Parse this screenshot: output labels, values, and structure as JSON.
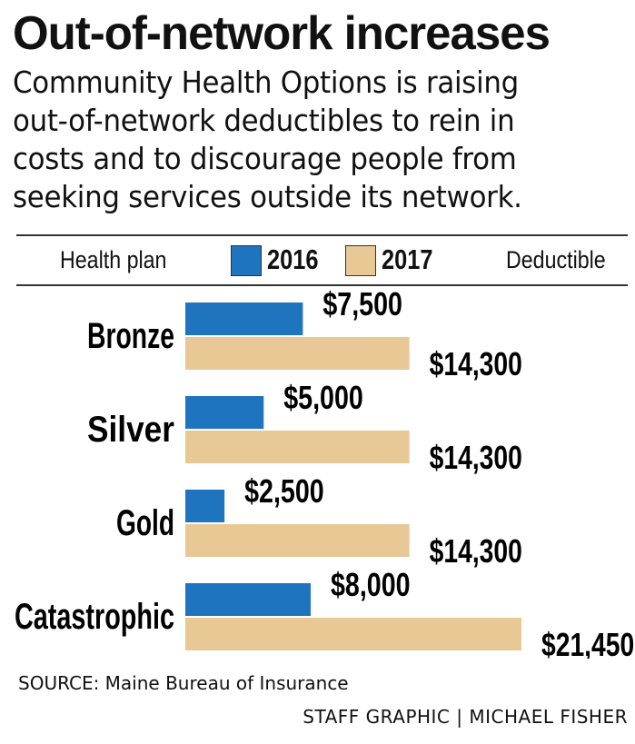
{
  "title": "Out-of-network increases",
  "subtitle_lines": [
    "Community Health Options is raising",
    "out-of-network deductibles to rein in",
    "costs and to discourage people from",
    "seeking services outside its network."
  ],
  "header": {
    "plan_label": "Health plan",
    "deductible_label": "Deductible"
  },
  "colors": {
    "2016": "#1f74c0",
    "2017": "#e8c995"
  },
  "chart_data": {
    "type": "bar",
    "orientation": "horizontal",
    "categories": [
      "Bronze",
      "Silver",
      "Gold",
      "Catastrophic"
    ],
    "series": [
      {
        "name": "2016",
        "values": [
          7500,
          5000,
          2500,
          8000
        ],
        "labels": [
          "$7,500",
          "$5,000",
          "$2,500",
          "$8,000"
        ]
      },
      {
        "name": "2017",
        "values": [
          14300,
          14300,
          14300,
          21450
        ],
        "labels": [
          "$14,300",
          "$14,300",
          "$14,300",
          "$21,450"
        ]
      }
    ],
    "legend_position": "top",
    "grid": false
  },
  "source": "SOURCE: Maine Bureau of Insurance",
  "credit": "STAFF GRAPHIC | MICHAEL FISHER"
}
